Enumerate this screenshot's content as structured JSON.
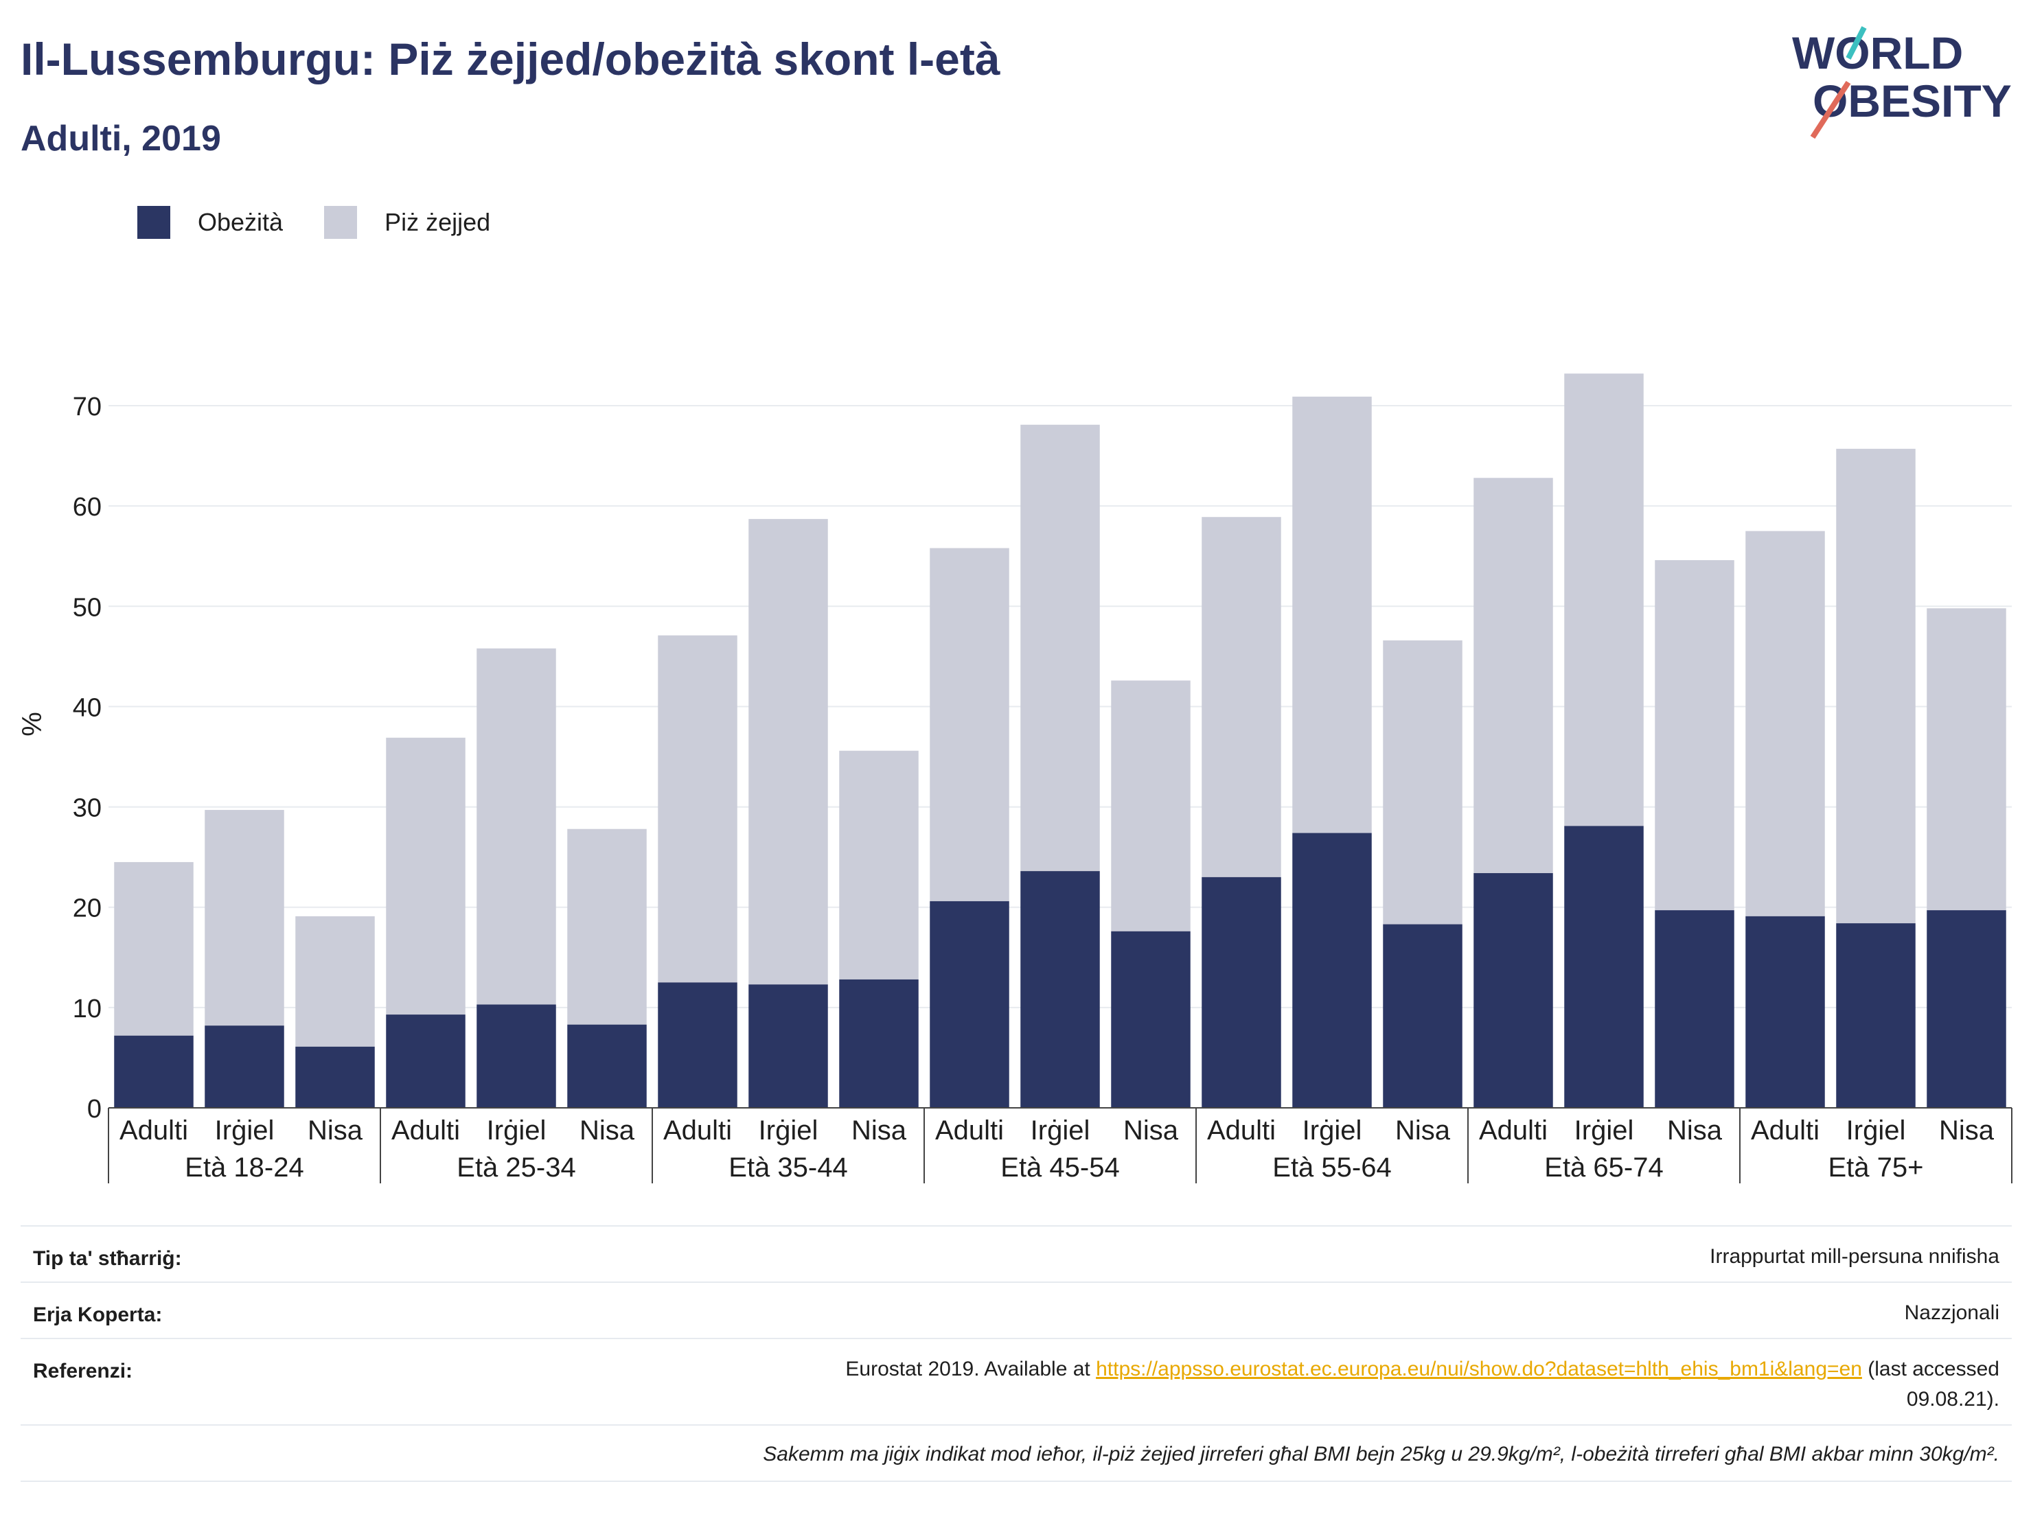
{
  "header": {
    "title": "Il-Lussemburgu: Piż żejjed/obeżità skont l-età",
    "subtitle": "Adulti, 2019"
  },
  "logo": {
    "line1": "WORLD",
    "line2": "OBESITY"
  },
  "legend": {
    "obese_label": "Obeżità",
    "overweight_label": "Piż żejjed"
  },
  "colors": {
    "obese": "#2b3663",
    "overweight": "#cbcdd9",
    "title": "#2b3463",
    "link": "#e8a800",
    "logo_red": "#e06a5a",
    "logo_teal": "#3cc0c0"
  },
  "chart_data": {
    "type": "bar",
    "stacked": true,
    "ylabel": "%",
    "ylim": [
      0,
      75
    ],
    "yticks": [
      0,
      10,
      20,
      30,
      40,
      50,
      60,
      70
    ],
    "grid": true,
    "legend_position": "top-left",
    "groups": [
      "Età 18-24",
      "Età 25-34",
      "Età 35-44",
      "Età 45-54",
      "Età 55-64",
      "Età 65-74",
      "Età 75+"
    ],
    "subcategories": [
      "Adulti",
      "Irġiel",
      "Nisa"
    ],
    "series": [
      {
        "name": "Obeżità",
        "values": [
          7.2,
          8.2,
          6.1,
          9.3,
          10.3,
          8.3,
          12.5,
          12.3,
          12.8,
          20.6,
          23.6,
          17.6,
          23.0,
          27.4,
          18.3,
          23.4,
          28.1,
          19.7,
          19.1,
          18.4,
          19.7
        ]
      },
      {
        "name": "Piż żejjed",
        "values": [
          17.3,
          21.5,
          13.0,
          27.6,
          35.5,
          19.5,
          34.6,
          46.4,
          22.8,
          35.2,
          44.5,
          25.0,
          35.9,
          43.5,
          28.3,
          39.4,
          45.1,
          34.9,
          38.4,
          47.3,
          30.1
        ]
      }
    ]
  },
  "footer": {
    "rows": [
      {
        "key": "Tip ta' stħarriġ:",
        "value": "Irrappurtat mill-persuna nnifisha"
      },
      {
        "key": "Erja Koperta:",
        "value": "Nazzjonali"
      }
    ],
    "ref_key": "Referenzi:",
    "ref_prefix": "Eurostat 2019. Available at ",
    "ref_link": "https://appsso.eurostat.ec.europa.eu/nui/show.do?dataset=hlth_ehis_bm1i&lang=en",
    "ref_suffix_1": " (last accessed",
    "ref_suffix_2": "09.08.21).",
    "note": "Sakemm ma jiġix indikat mod ieħor, il-piż żejjed jirreferi għal BMI bejn 25kg u 29.9kg/m², l-obeżità tirreferi għal BMI akbar minn 30kg/m²."
  }
}
